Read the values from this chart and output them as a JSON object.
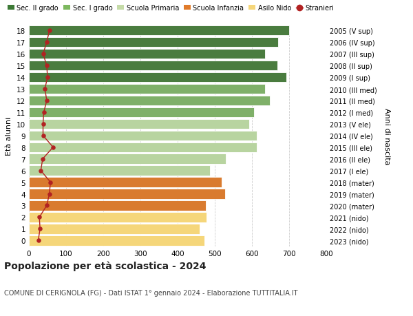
{
  "ages": [
    18,
    17,
    16,
    15,
    14,
    13,
    12,
    11,
    10,
    9,
    8,
    7,
    6,
    5,
    4,
    3,
    2,
    1,
    0
  ],
  "right_labels": [
    "2005 (V sup)",
    "2006 (IV sup)",
    "2007 (III sup)",
    "2008 (II sup)",
    "2009 (I sup)",
    "2010 (III med)",
    "2011 (II med)",
    "2012 (I med)",
    "2013 (V ele)",
    "2014 (IV ele)",
    "2015 (III ele)",
    "2016 (II ele)",
    "2017 (I ele)",
    "2018 (mater)",
    "2019 (mater)",
    "2020 (mater)",
    "2021 (nido)",
    "2022 (nido)",
    "2023 (nido)"
  ],
  "bar_values": [
    700,
    670,
    635,
    668,
    693,
    635,
    648,
    605,
    593,
    613,
    613,
    530,
    487,
    518,
    527,
    475,
    477,
    460,
    473
  ],
  "stranieri": [
    55,
    48,
    38,
    48,
    50,
    43,
    48,
    40,
    38,
    38,
    65,
    37,
    32,
    58,
    55,
    48,
    28,
    30,
    25
  ],
  "bar_colors": [
    "#4a7c3f",
    "#4a7c3f",
    "#4a7c3f",
    "#4a7c3f",
    "#4a7c3f",
    "#7fb069",
    "#7fb069",
    "#7fb069",
    "#b8d4a0",
    "#b8d4a0",
    "#b8d4a0",
    "#b8d4a0",
    "#b8d4a0",
    "#d97b2f",
    "#d97b2f",
    "#d97b2f",
    "#f5d67a",
    "#f5d67a",
    "#f5d67a"
  ],
  "legend_labels": [
    "Sec. II grado",
    "Sec. I grado",
    "Scuola Primaria",
    "Scuola Infanzia",
    "Asilo Nido",
    "Stranieri"
  ],
  "legend_colors": [
    "#3d7a36",
    "#7db85f",
    "#c5dba8",
    "#e07b2a",
    "#f5d67a",
    "#c0392b"
  ],
  "stranieri_color": "#b22222",
  "title": "Popolazione per età scolastica - 2024",
  "subtitle": "COMUNE DI CERIGNOLA (FG) - Dati ISTAT 1° gennaio 2024 - Elaborazione TUTTITALIA.IT",
  "ylabel_left": "Età alunni",
  "ylabel_right": "Anni di nascita",
  "xlim": [
    0,
    800
  ],
  "xticks": [
    0,
    100,
    200,
    300,
    400,
    500,
    600,
    700,
    800
  ],
  "grid_color": "#cccccc",
  "bg_color": "#ffffff",
  "bar_height": 0.85
}
